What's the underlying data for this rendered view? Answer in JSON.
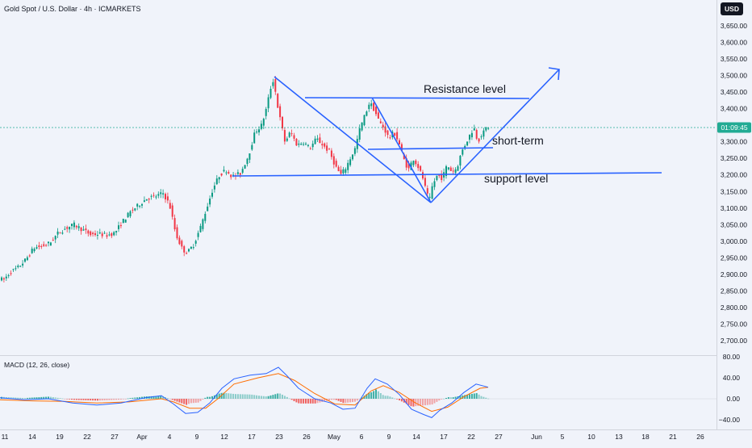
{
  "header": {
    "title": "Gold Spot / U.S. Dollar · 4h · ICMARKETS",
    "currency": "USD"
  },
  "price_axis": {
    "ticks": [
      "3,650.00",
      "3,600.00",
      "3,550.00",
      "3,500.00",
      "3,450.00",
      "3,400.00",
      "3,350.00",
      "3,300.00",
      "3,250.00",
      "3,200.00",
      "3,150.00",
      "3,100.00",
      "3,050.00",
      "3,000.00",
      "2,950.00",
      "2,900.00",
      "2,850.00",
      "2,800.00",
      "2,750.00",
      "2,700.00"
    ],
    "tick_values": [
      3650,
      3600,
      3550,
      3500,
      3450,
      3400,
      3350,
      3300,
      3250,
      3200,
      3150,
      3100,
      3050,
      3000,
      2950,
      2900,
      2850,
      2800,
      2750,
      2700
    ],
    "countdown_label": "01:09:45",
    "current_price_value": 3343
  },
  "date_axis": {
    "labels": [
      "11",
      "14",
      "19",
      "22",
      "27",
      "Apr",
      "4",
      "9",
      "12",
      "17",
      "23",
      "26",
      "May",
      "6",
      "9",
      "14",
      "17",
      "22",
      "27",
      "Jun",
      "5",
      "10",
      "13",
      "18",
      "21",
      "26"
    ]
  },
  "indicator": {
    "label": "MACD (12, 26, close)",
    "ticks": [
      "80.00",
      "40.00",
      "0.00",
      "−40.00"
    ],
    "tick_values": [
      80,
      40,
      0,
      -40
    ]
  },
  "annotations": {
    "resistance": "Resistance level",
    "short_term": "short-term",
    "support": "support level"
  },
  "colors": {
    "background": "#f0f3fa",
    "up": "#089981",
    "down": "#f23645",
    "drawing": "#2962ff",
    "macd_line": "#2962ff",
    "signal_line": "#ff6d00",
    "hist_up": "#26a69a",
    "hist_down": "#ef5350",
    "price_marker": "#22ab94",
    "grid": "#e0e3eb"
  },
  "chart_data": {
    "type": "candlestick",
    "title": "Gold Spot / U.S. Dollar · 4h · ICMARKETS",
    "ylim": [
      2670,
      3690
    ],
    "path": [
      [
        0,
        2890
      ],
      [
        6,
        2882
      ],
      [
        14,
        2905
      ],
      [
        24,
        2920
      ],
      [
        34,
        2945
      ],
      [
        44,
        2980
      ],
      [
        54,
        2985
      ],
      [
        64,
        2995
      ],
      [
        74,
        3025
      ],
      [
        84,
        3040
      ],
      [
        94,
        3050
      ],
      [
        104,
        3035
      ],
      [
        114,
        3020
      ],
      [
        124,
        3022
      ],
      [
        134,
        3018
      ],
      [
        144,
        3025
      ],
      [
        154,
        3060
      ],
      [
        164,
        3090
      ],
      [
        174,
        3110
      ],
      [
        184,
        3130
      ],
      [
        194,
        3135
      ],
      [
        204,
        3145
      ],
      [
        212,
        3110
      ],
      [
        220,
        3020
      ],
      [
        228,
        2975
      ],
      [
        234,
        2965
      ],
      [
        242,
        2990
      ],
      [
        250,
        3040
      ],
      [
        258,
        3100
      ],
      [
        266,
        3160
      ],
      [
        274,
        3200
      ],
      [
        282,
        3215
      ],
      [
        290,
        3195
      ],
      [
        300,
        3205
      ],
      [
        310,
        3260
      ],
      [
        318,
        3330
      ],
      [
        326,
        3350
      ],
      [
        332,
        3400
      ],
      [
        337,
        3460
      ],
      [
        341,
        3490
      ],
      [
        345,
        3420
      ],
      [
        349,
        3370
      ],
      [
        355,
        3300
      ],
      [
        362,
        3330
      ],
      [
        370,
        3290
      ],
      [
        378,
        3300
      ],
      [
        386,
        3280
      ],
      [
        394,
        3310
      ],
      [
        402,
        3290
      ],
      [
        410,
        3270
      ],
      [
        418,
        3225
      ],
      [
        424,
        3200
      ],
      [
        430,
        3220
      ],
      [
        436,
        3250
      ],
      [
        442,
        3280
      ],
      [
        448,
        3340
      ],
      [
        454,
        3380
      ],
      [
        460,
        3420
      ],
      [
        466,
        3395
      ],
      [
        472,
        3360
      ],
      [
        478,
        3340
      ],
      [
        484,
        3310
      ],
      [
        490,
        3330
      ],
      [
        496,
        3300
      ],
      [
        502,
        3250
      ],
      [
        508,
        3215
      ],
      [
        514,
        3250
      ],
      [
        520,
        3225
      ],
      [
        526,
        3190
      ],
      [
        530,
        3150
      ],
      [
        534,
        3120
      ],
      [
        538,
        3170
      ],
      [
        544,
        3200
      ],
      [
        550,
        3190
      ],
      [
        556,
        3230
      ],
      [
        562,
        3210
      ],
      [
        568,
        3220
      ],
      [
        574,
        3270
      ],
      [
        580,
        3300
      ],
      [
        586,
        3330
      ],
      [
        590,
        3340
      ],
      [
        594,
        3300
      ],
      [
        598,
        3320
      ],
      [
        602,
        3330
      ],
      [
        605,
        3345
      ]
    ],
    "macd_path": [
      [
        0,
        2
      ],
      [
        30,
        -2
      ],
      [
        60,
        0
      ],
      [
        90,
        -8
      ],
      [
        120,
        -12
      ],
      [
        150,
        -8
      ],
      [
        180,
        2
      ],
      [
        200,
        6
      ],
      [
        215,
        -10
      ],
      [
        230,
        -28
      ],
      [
        245,
        -26
      ],
      [
        260,
        -8
      ],
      [
        275,
        20
      ],
      [
        290,
        38
      ],
      [
        310,
        45
      ],
      [
        330,
        48
      ],
      [
        345,
        60
      ],
      [
        355,
        45
      ],
      [
        370,
        20
      ],
      [
        390,
        0
      ],
      [
        410,
        -8
      ],
      [
        425,
        -20
      ],
      [
        440,
        -18
      ],
      [
        455,
        20
      ],
      [
        465,
        38
      ],
      [
        480,
        28
      ],
      [
        495,
        8
      ],
      [
        510,
        -20
      ],
      [
        525,
        -30
      ],
      [
        535,
        -36
      ],
      [
        545,
        -22
      ],
      [
        560,
        -8
      ],
      [
        575,
        12
      ],
      [
        590,
        28
      ],
      [
        605,
        22
      ]
    ],
    "signal_path": [
      [
        0,
        -2
      ],
      [
        40,
        -4
      ],
      [
        80,
        -5
      ],
      [
        120,
        -8
      ],
      [
        160,
        -6
      ],
      [
        200,
        0
      ],
      [
        215,
        -6
      ],
      [
        235,
        -18
      ],
      [
        255,
        -18
      ],
      [
        270,
        0
      ],
      [
        290,
        28
      ],
      [
        320,
        40
      ],
      [
        345,
        48
      ],
      [
        365,
        35
      ],
      [
        390,
        10
      ],
      [
        415,
        -10
      ],
      [
        440,
        -12
      ],
      [
        460,
        15
      ],
      [
        475,
        25
      ],
      [
        495,
        12
      ],
      [
        515,
        -8
      ],
      [
        535,
        -24
      ],
      [
        555,
        -16
      ],
      [
        575,
        4
      ],
      [
        595,
        20
      ],
      [
        605,
        22
      ]
    ]
  }
}
